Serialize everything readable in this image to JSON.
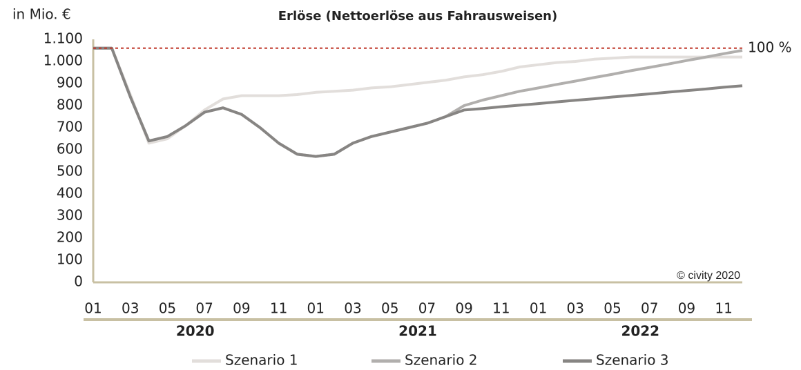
{
  "chart_data": {
    "type": "line",
    "title": "Erlöse (Nettoerlöse aus Fahrausweisen)",
    "y_label": "in Mio. €",
    "categories": [
      "01",
      null,
      "03",
      null,
      "05",
      null,
      "07",
      null,
      "09",
      null,
      "11",
      null,
      "01",
      null,
      "03",
      null,
      "05",
      null,
      "07",
      null,
      "09",
      null,
      "11",
      null,
      "01",
      null,
      "03",
      null,
      "05",
      null,
      "07",
      null,
      "09",
      null,
      "11",
      null
    ],
    "year_groups": [
      "2020",
      "2021",
      "2022"
    ],
    "series": [
      {
        "name": "Szenario 1",
        "color": "#e2dedb",
        "values": [
          1060,
          1060,
          850,
          630,
          650,
          710,
          780,
          830,
          845,
          845,
          845,
          850,
          860,
          865,
          870,
          880,
          885,
          895,
          905,
          915,
          930,
          940,
          955,
          975,
          985,
          995,
          1000,
          1010,
          1015,
          1020,
          1020,
          1020,
          1020,
          1020,
          1020,
          1020
        ]
      },
      {
        "name": "Szenario 2",
        "color": "#b1afad",
        "values": [
          1060,
          1060,
          840,
          640,
          660,
          710,
          770,
          790,
          760,
          700,
          630,
          580,
          570,
          580,
          630,
          660,
          680,
          700,
          720,
          750,
          800,
          825,
          845,
          865,
          880,
          896,
          911,
          927,
          942,
          958,
          973,
          988,
          1004,
          1019,
          1035,
          1050
        ]
      },
      {
        "name": "Szenario 3",
        "color": "#878583",
        "values": [
          1060,
          1060,
          840,
          640,
          660,
          710,
          770,
          790,
          760,
          700,
          630,
          580,
          570,
          580,
          630,
          660,
          680,
          700,
          720,
          750,
          780,
          787,
          795,
          802,
          809,
          817,
          824,
          831,
          839,
          846,
          853,
          861,
          868,
          875,
          883,
          890
        ]
      }
    ],
    "ylim": [
      0,
      1100
    ],
    "yticks": [
      0,
      100,
      200,
      300,
      400,
      500,
      600,
      700,
      800,
      900,
      {
        "value": 1000,
        "label": "1.000"
      },
      {
        "value": 1100,
        "label": "1.100"
      }
    ],
    "reference": {
      "value": 1060,
      "label": "100 %",
      "color": "#c0392b"
    },
    "source": "© civity 2020",
    "axis_color": "#c8c0a3"
  }
}
